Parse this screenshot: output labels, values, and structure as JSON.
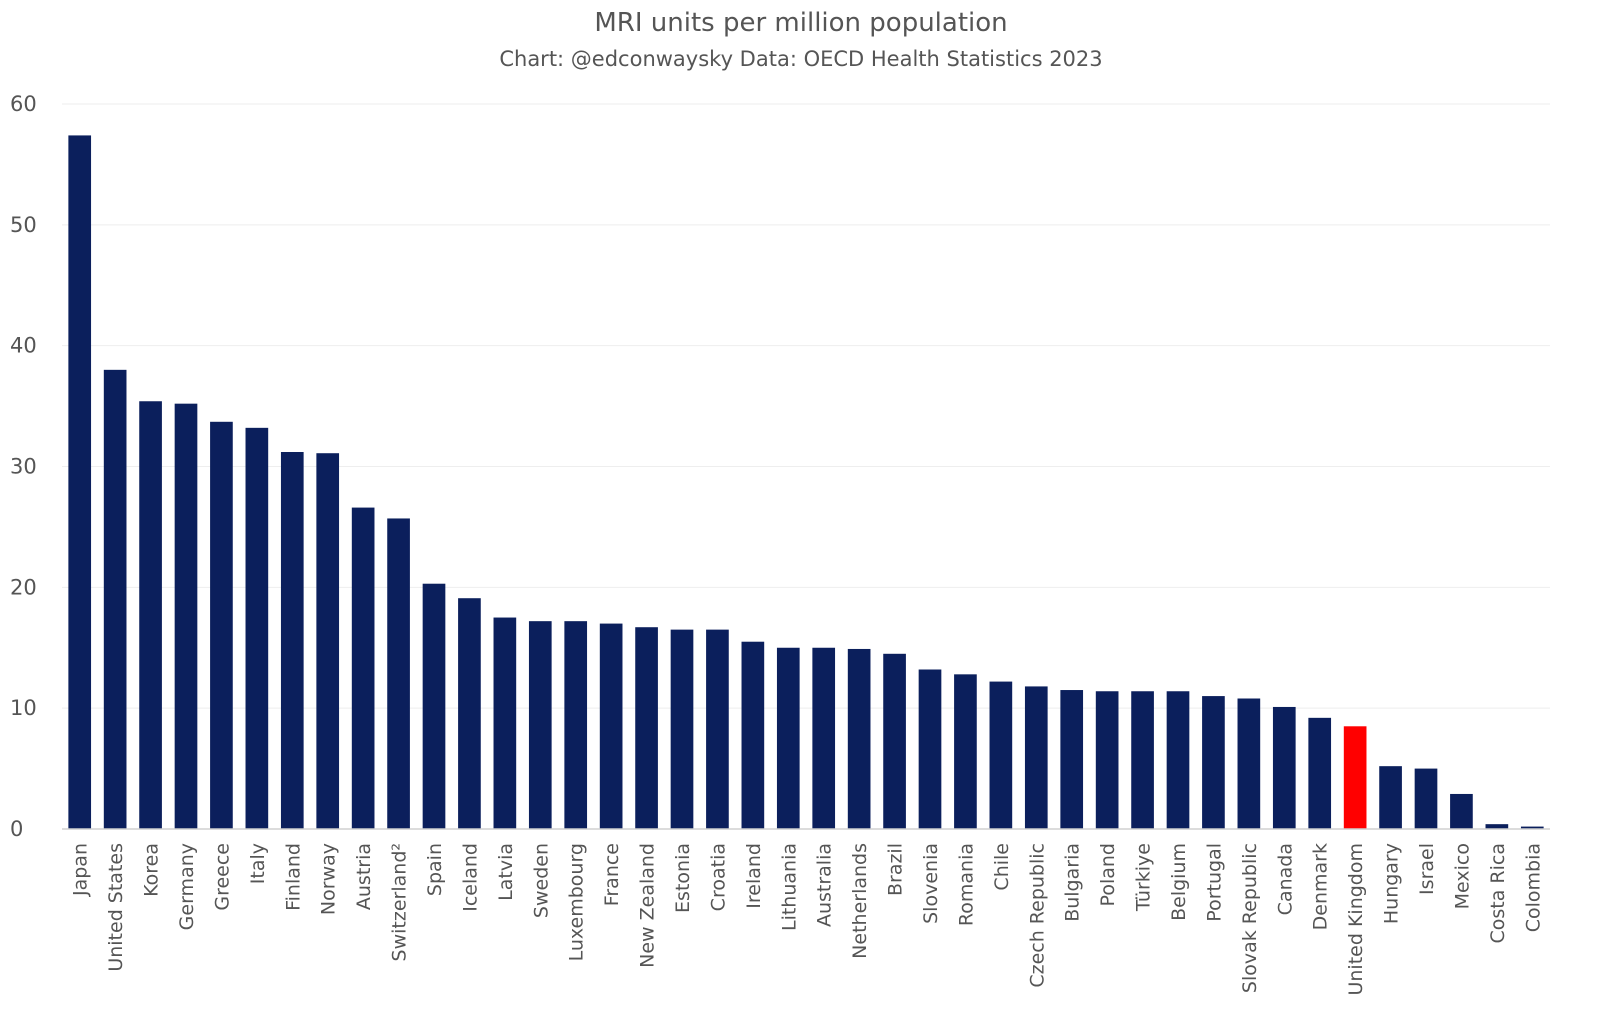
{
  "chart_data": {
    "type": "bar",
    "title": "MRI units per million population",
    "subtitle": "Chart: @edconwaysky Data: OECD Health Statistics 2023",
    "xlabel": "",
    "ylabel": "",
    "ylim": [
      0,
      60
    ],
    "yticks": [
      0,
      10,
      20,
      30,
      40,
      50,
      60
    ],
    "grid": true,
    "legend": "none",
    "colors": {
      "bar": "#0b1f5c",
      "highlight": "#ff0000",
      "grid": "#eeeeee",
      "axis": "#d0d0d0"
    },
    "highlight": "United Kingdom",
    "categories": [
      "Japan",
      "United States",
      "Korea",
      "Germany",
      "Greece",
      "Italy",
      "Finland",
      "Norway",
      "Austria",
      "Switzerland²",
      "Spain",
      "Iceland",
      "Latvia",
      "Sweden",
      "Luxembourg",
      "France",
      "New Zealand",
      "Estonia",
      "Croatia",
      "Ireland",
      "Lithuania",
      "Australia",
      "Netherlands",
      "Brazil",
      "Slovenia",
      "Romania",
      "Chile",
      "Czech Republic",
      "Bulgaria",
      "Poland",
      "Türkiye",
      "Belgium",
      "Portugal",
      "Slovak Republic",
      "Canada",
      "Denmark",
      "United Kingdom",
      "Hungary",
      "Israel",
      "Mexico",
      "Costa Rica",
      "Colombia"
    ],
    "values": [
      57.4,
      38.0,
      35.4,
      35.2,
      33.7,
      33.2,
      31.2,
      31.1,
      26.6,
      25.7,
      20.3,
      19.1,
      17.5,
      17.2,
      17.2,
      17.0,
      16.7,
      16.5,
      16.5,
      15.5,
      15.0,
      15.0,
      14.9,
      14.5,
      13.2,
      12.8,
      12.2,
      11.8,
      11.5,
      11.4,
      11.4,
      11.4,
      11.0,
      10.8,
      10.1,
      9.2,
      8.5,
      5.2,
      5.0,
      2.9,
      0.4,
      0.2
    ]
  }
}
